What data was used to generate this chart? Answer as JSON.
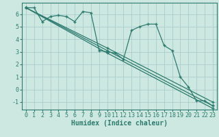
{
  "background_color": "#cce8e0",
  "grid_color": "#aacccc",
  "line_color": "#2d7a6e",
  "xlabel": "Humidex (Indice chaleur)",
  "xlabel_fontsize": 7,
  "tick_fontsize": 6,
  "ylim": [
    -1.6,
    6.9
  ],
  "xlim": [
    -0.5,
    23.5
  ],
  "yticks": [
    -1,
    0,
    1,
    2,
    3,
    4,
    5,
    6
  ],
  "xticks": [
    0,
    1,
    2,
    3,
    4,
    5,
    6,
    7,
    8,
    9,
    10,
    11,
    12,
    13,
    14,
    15,
    16,
    17,
    18,
    19,
    20,
    21,
    22,
    23
  ],
  "series": [
    {
      "x": [
        0,
        1,
        2,
        3,
        4,
        5,
        6,
        7,
        8,
        9,
        10,
        11,
        12,
        13,
        14,
        15,
        16,
        17,
        18,
        19,
        20,
        21,
        22,
        23
      ],
      "y": [
        6.5,
        6.5,
        5.4,
        5.8,
        5.9,
        5.8,
        5.4,
        6.2,
        6.1,
        3.1,
        3.0,
        2.9,
        2.4,
        4.7,
        5.0,
        5.2,
        5.2,
        3.5,
        3.1,
        1.0,
        0.2,
        -0.9,
        -0.9,
        -1.3
      ]
    },
    {
      "x": [
        0,
        10,
        23
      ],
      "y": [
        6.5,
        3.1,
        -1.3
      ]
    },
    {
      "x": [
        0,
        10,
        23
      ],
      "y": [
        6.5,
        3.3,
        -1.0
      ]
    },
    {
      "x": [
        0,
        10,
        23
      ],
      "y": [
        6.5,
        2.9,
        -1.5
      ]
    }
  ]
}
